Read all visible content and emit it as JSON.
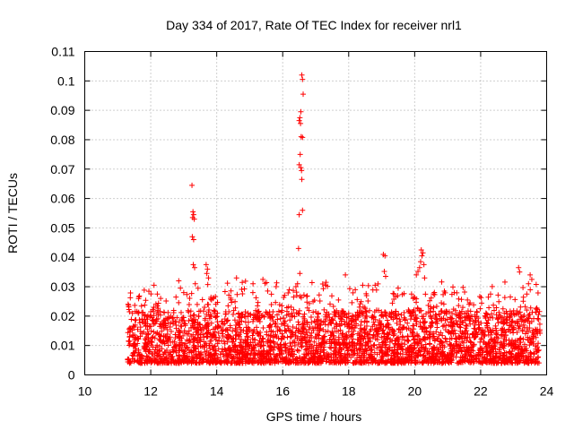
{
  "chart_data": {
    "type": "scatter",
    "title": "Day 334 of 2017, Rate Of TEC Index for receiver nrl1",
    "xlabel": "GPS time / hours",
    "ylabel": "ROTI / TECUs",
    "xlim": [
      10,
      24
    ],
    "ylim": [
      0,
      0.11
    ],
    "xticks": [
      10,
      12,
      14,
      16,
      18,
      20,
      22,
      24
    ],
    "xtick_labels": [
      "10",
      "12",
      "14",
      "16",
      "18",
      "20",
      "22",
      "24"
    ],
    "yticks": [
      0,
      0.01,
      0.02,
      0.03,
      0.04,
      0.05,
      0.06,
      0.07,
      0.08,
      0.09,
      0.1,
      0.11
    ],
    "ytick_labels": [
      "0",
      "0.01",
      "0.02",
      "0.03",
      "0.04",
      "0.05",
      "0.06",
      "0.07",
      "0.08",
      "0.09",
      "0.1",
      "0.11"
    ],
    "grid": true,
    "marker": "+",
    "color": "#ff0000",
    "data_range_hours": [
      11.3,
      23.8
    ],
    "typical_range": [
      0.004,
      0.022
    ],
    "series": [
      {
        "name": "ROTI",
        "points": [
          [
            13.25,
            0.0645
          ],
          [
            13.28,
            0.0555
          ],
          [
            13.3,
            0.0545
          ],
          [
            13.27,
            0.0535
          ],
          [
            13.32,
            0.053
          ],
          [
            13.26,
            0.047
          ],
          [
            13.3,
            0.046
          ],
          [
            13.29,
            0.0375
          ],
          [
            13.33,
            0.0365
          ],
          [
            13.35,
            0.031
          ],
          [
            13.68,
            0.0375
          ],
          [
            13.72,
            0.036
          ],
          [
            13.7,
            0.0345
          ],
          [
            13.75,
            0.033
          ],
          [
            16.58,
            0.102
          ],
          [
            16.6,
            0.1005
          ],
          [
            16.62,
            0.0955
          ],
          [
            16.55,
            0.0895
          ],
          [
            16.52,
            0.0875
          ],
          [
            16.5,
            0.0865
          ],
          [
            16.54,
            0.0855
          ],
          [
            16.56,
            0.081
          ],
          [
            16.6,
            0.0808
          ],
          [
            16.53,
            0.075
          ],
          [
            16.5,
            0.0715
          ],
          [
            16.55,
            0.0705
          ],
          [
            16.57,
            0.0695
          ],
          [
            16.58,
            0.0665
          ],
          [
            16.6,
            0.056
          ],
          [
            16.5,
            0.0545
          ],
          [
            16.48,
            0.043
          ],
          [
            16.52,
            0.0345
          ],
          [
            16.45,
            0.031
          ],
          [
            16.4,
            0.03
          ],
          [
            19.05,
            0.041
          ],
          [
            19.1,
            0.0405
          ],
          [
            19.08,
            0.0352
          ],
          [
            19.12,
            0.0335
          ],
          [
            20.2,
            0.0425
          ],
          [
            20.25,
            0.0415
          ],
          [
            20.22,
            0.0405
          ],
          [
            20.18,
            0.0385
          ],
          [
            20.28,
            0.0375
          ],
          [
            20.15,
            0.0365
          ],
          [
            20.1,
            0.0352
          ],
          [
            20.05,
            0.034
          ],
          [
            20.3,
            0.033
          ],
          [
            23.15,
            0.0365
          ],
          [
            23.18,
            0.035
          ],
          [
            23.5,
            0.034
          ],
          [
            23.55,
            0.0325
          ],
          [
            23.45,
            0.031
          ],
          [
            12.1,
            0.0305
          ],
          [
            12.2,
            0.0275
          ],
          [
            12.3,
            0.026
          ],
          [
            12.9,
            0.0295
          ],
          [
            13.0,
            0.028
          ],
          [
            14.6,
            0.033
          ],
          [
            15.1,
            0.031
          ],
          [
            15.4,
            0.0325
          ],
          [
            15.8,
            0.03
          ],
          [
            16.2,
            0.029
          ],
          [
            17.3,
            0.0305
          ],
          [
            17.9,
            0.034
          ],
          [
            18.2,
            0.029
          ],
          [
            18.8,
            0.0305
          ],
          [
            19.5,
            0.0295
          ],
          [
            20.9,
            0.0285
          ],
          [
            21.2,
            0.028
          ],
          [
            21.6,
            0.0255
          ],
          [
            22.3,
            0.0275
          ],
          [
            22.9,
            0.0265
          ]
        ]
      }
    ]
  }
}
